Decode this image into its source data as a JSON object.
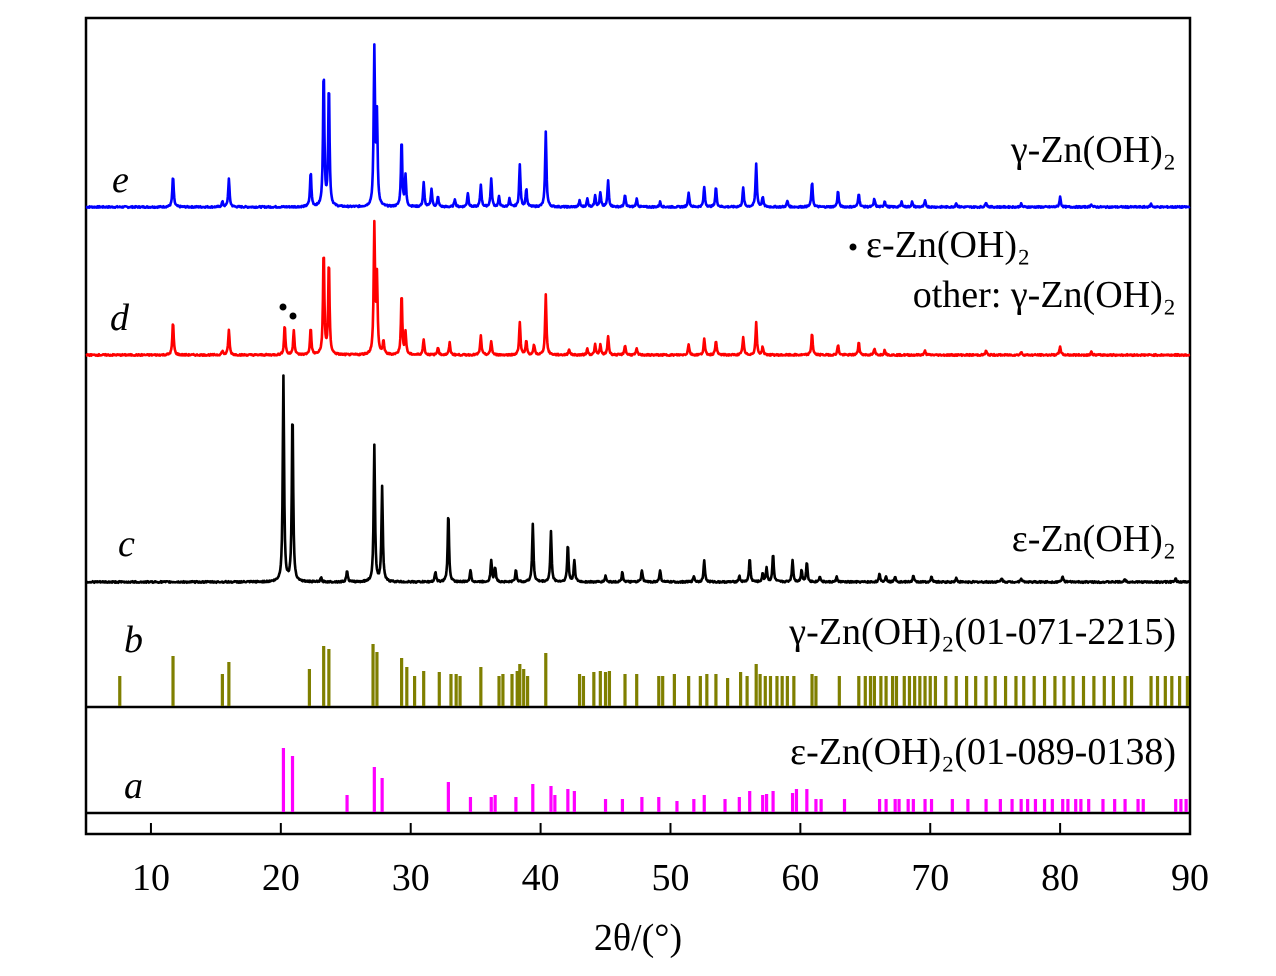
{
  "chart_data": {
    "type": "line",
    "xlabel": "2θ/(°)",
    "xlim": [
      5,
      90
    ],
    "x_ticks": [
      10,
      20,
      30,
      40,
      50,
      60,
      70,
      80,
      90
    ],
    "grid": false,
    "legend": "none",
    "panels": [
      {
        "id": "e",
        "letter": "e",
        "kind": "pattern",
        "label": "γ-Zn(OH)₂",
        "color": "#0000ff",
        "peaks": [
          [
            11.7,
            31
          ],
          [
            15.5,
            5
          ],
          [
            16.0,
            28
          ],
          [
            22.3,
            35
          ],
          [
            23.3,
            137
          ],
          [
            23.7,
            123
          ],
          [
            27.2,
            155
          ],
          [
            27.4,
            88
          ],
          [
            29.3,
            67
          ],
          [
            29.6,
            30
          ],
          [
            31.0,
            24
          ],
          [
            31.6,
            18
          ],
          [
            32.1,
            10
          ],
          [
            33.4,
            8
          ],
          [
            34.4,
            14
          ],
          [
            35.4,
            22
          ],
          [
            36.2,
            28
          ],
          [
            36.8,
            10
          ],
          [
            37.6,
            8
          ],
          [
            38.4,
            42
          ],
          [
            38.9,
            18
          ],
          [
            40.4,
            75
          ],
          [
            43.0,
            6
          ],
          [
            43.6,
            8
          ],
          [
            44.2,
            12
          ],
          [
            44.6,
            14
          ],
          [
            45.2,
            26
          ],
          [
            46.5,
            12
          ],
          [
            47.4,
            8
          ],
          [
            49.2,
            5
          ],
          [
            51.4,
            15
          ],
          [
            52.6,
            20
          ],
          [
            53.5,
            20
          ],
          [
            55.6,
            19
          ],
          [
            56.6,
            43
          ],
          [
            57.1,
            10
          ],
          [
            59.0,
            6
          ],
          [
            60.9,
            25
          ],
          [
            62.9,
            16
          ],
          [
            64.5,
            14
          ],
          [
            65.7,
            8
          ],
          [
            66.5,
            6
          ],
          [
            67.8,
            5
          ],
          [
            68.6,
            5
          ],
          [
            69.6,
            6
          ],
          [
            72.0,
            4
          ],
          [
            74.3,
            5
          ],
          [
            77.0,
            3
          ],
          [
            80.0,
            10
          ],
          [
            82.4,
            3
          ],
          [
            87.0,
            3
          ]
        ]
      },
      {
        "id": "d",
        "letter": "d",
        "kind": "pattern",
        "label": "ε-Zn(OH)₂",
        "label2": "other: γ-Zn(OH)₂",
        "color": "#ff0000",
        "peaks": [
          [
            11.7,
            33
          ],
          [
            15.5,
            4
          ],
          [
            16.0,
            25
          ],
          [
            20.3,
            30
          ],
          [
            21.0,
            25
          ],
          [
            22.3,
            27
          ],
          [
            23.3,
            105
          ],
          [
            23.7,
            93
          ],
          [
            27.2,
            127
          ],
          [
            27.4,
            75
          ],
          [
            27.9,
            14
          ],
          [
            29.3,
            61
          ],
          [
            29.6,
            22
          ],
          [
            31.0,
            16
          ],
          [
            32.1,
            8
          ],
          [
            33.0,
            12
          ],
          [
            35.4,
            19
          ],
          [
            36.2,
            14
          ],
          [
            38.4,
            33
          ],
          [
            38.9,
            14
          ],
          [
            39.5,
            10
          ],
          [
            40.4,
            60
          ],
          [
            42.2,
            6
          ],
          [
            43.6,
            6
          ],
          [
            44.2,
            10
          ],
          [
            44.6,
            10
          ],
          [
            45.2,
            19
          ],
          [
            46.5,
            10
          ],
          [
            47.4,
            6
          ],
          [
            51.4,
            11
          ],
          [
            52.6,
            16
          ],
          [
            53.5,
            15
          ],
          [
            55.6,
            18
          ],
          [
            56.6,
            32
          ],
          [
            57.1,
            8
          ],
          [
            60.9,
            22
          ],
          [
            62.9,
            10
          ],
          [
            64.5,
            13
          ],
          [
            65.7,
            6
          ],
          [
            66.5,
            5
          ],
          [
            69.6,
            4
          ],
          [
            74.3,
            4
          ],
          [
            77.0,
            3
          ],
          [
            80.0,
            9
          ],
          [
            82.4,
            3
          ]
        ]
      },
      {
        "id": "c",
        "letter": "c",
        "kind": "pattern",
        "label": "ε-Zn(OH)₂",
        "color": "#000000",
        "peaks": [
          [
            20.2,
            205
          ],
          [
            20.9,
            173
          ],
          [
            23.1,
            4
          ],
          [
            25.1,
            12
          ],
          [
            27.2,
            136
          ],
          [
            27.8,
            94
          ],
          [
            31.9,
            10
          ],
          [
            32.9,
            70
          ],
          [
            34.6,
            12
          ],
          [
            36.2,
            22
          ],
          [
            36.5,
            15
          ],
          [
            38.1,
            12
          ],
          [
            39.4,
            58
          ],
          [
            40.8,
            50
          ],
          [
            42.1,
            38
          ],
          [
            42.6,
            22
          ],
          [
            45.0,
            6
          ],
          [
            46.3,
            10
          ],
          [
            47.8,
            12
          ],
          [
            49.2,
            12
          ],
          [
            51.8,
            6
          ],
          [
            52.6,
            22
          ],
          [
            55.3,
            6
          ],
          [
            56.1,
            24
          ],
          [
            57.1,
            8
          ],
          [
            57.4,
            14
          ],
          [
            57.9,
            28
          ],
          [
            59.4,
            22
          ],
          [
            60.1,
            12
          ],
          [
            60.5,
            20
          ],
          [
            61.5,
            6
          ],
          [
            62.8,
            5
          ],
          [
            66.1,
            8
          ],
          [
            66.6,
            6
          ],
          [
            67.3,
            6
          ],
          [
            68.7,
            6
          ],
          [
            70.1,
            5
          ],
          [
            72.0,
            4
          ],
          [
            75.5,
            4
          ],
          [
            77.0,
            4
          ],
          [
            80.2,
            6
          ],
          [
            85.0,
            3
          ],
          [
            88.9,
            3
          ]
        ]
      },
      {
        "id": "b",
        "letter": "b",
        "kind": "reference",
        "label": "γ-Zn(OH)₂(01-071-2215)",
        "color": "#7f7f00",
        "peaks": [
          [
            7.6,
            30
          ],
          [
            11.7,
            50
          ],
          [
            15.5,
            32
          ],
          [
            16.0,
            44
          ],
          [
            22.2,
            37
          ],
          [
            23.3,
            60
          ],
          [
            23.7,
            57
          ],
          [
            27.1,
            62
          ],
          [
            27.4,
            54
          ],
          [
            29.3,
            48
          ],
          [
            29.7,
            39
          ],
          [
            30.3,
            30
          ],
          [
            31.0,
            35
          ],
          [
            32.2,
            34
          ],
          [
            33.1,
            32
          ],
          [
            33.5,
            32
          ],
          [
            33.8,
            30
          ],
          [
            35.4,
            39
          ],
          [
            36.8,
            30
          ],
          [
            37.1,
            32
          ],
          [
            37.8,
            32
          ],
          [
            38.2,
            35
          ],
          [
            38.4,
            42
          ],
          [
            38.7,
            37
          ],
          [
            39.0,
            30
          ],
          [
            40.4,
            53
          ],
          [
            43.0,
            32
          ],
          [
            43.3,
            30
          ],
          [
            44.1,
            34
          ],
          [
            44.6,
            35
          ],
          [
            45.0,
            34
          ],
          [
            45.3,
            35
          ],
          [
            46.5,
            32
          ],
          [
            47.4,
            32
          ],
          [
            49.1,
            30
          ],
          [
            49.4,
            30
          ],
          [
            50.3,
            32
          ],
          [
            51.4,
            30
          ],
          [
            52.3,
            30
          ],
          [
            52.8,
            32
          ],
          [
            53.5,
            32
          ],
          [
            54.4,
            28
          ],
          [
            55.4,
            34
          ],
          [
            55.9,
            30
          ],
          [
            56.6,
            42
          ],
          [
            56.9,
            32
          ],
          [
            57.3,
            30
          ],
          [
            57.7,
            30
          ],
          [
            58.2,
            30
          ],
          [
            58.6,
            30
          ],
          [
            59.0,
            30
          ],
          [
            59.5,
            30
          ],
          [
            60.9,
            32
          ],
          [
            61.2,
            30
          ],
          [
            63.0,
            30
          ],
          [
            64.5,
            30
          ],
          [
            65.0,
            30
          ],
          [
            65.4,
            30
          ],
          [
            65.7,
            30
          ],
          [
            66.2,
            30
          ],
          [
            66.6,
            30
          ],
          [
            67.1,
            30
          ],
          [
            67.4,
            30
          ],
          [
            68.0,
            30
          ],
          [
            68.4,
            30
          ],
          [
            68.8,
            30
          ],
          [
            69.2,
            30
          ],
          [
            69.6,
            30
          ],
          [
            70.0,
            30
          ],
          [
            70.4,
            30
          ],
          [
            71.2,
            30
          ],
          [
            72.0,
            30
          ],
          [
            72.8,
            30
          ],
          [
            73.5,
            30
          ],
          [
            74.3,
            30
          ],
          [
            75.0,
            30
          ],
          [
            75.8,
            30
          ],
          [
            76.6,
            30
          ],
          [
            77.2,
            30
          ],
          [
            78.0,
            30
          ],
          [
            78.8,
            30
          ],
          [
            79.6,
            30
          ],
          [
            80.3,
            30
          ],
          [
            81.0,
            30
          ],
          [
            81.8,
            30
          ],
          [
            82.6,
            30
          ],
          [
            83.4,
            30
          ],
          [
            84.1,
            30
          ],
          [
            85.0,
            30
          ],
          [
            85.5,
            30
          ],
          [
            87.0,
            30
          ],
          [
            87.5,
            30
          ],
          [
            88.1,
            30
          ],
          [
            88.6,
            30
          ],
          [
            89.2,
            30
          ],
          [
            89.8,
            30
          ]
        ]
      },
      {
        "id": "a",
        "letter": "a",
        "kind": "reference",
        "label": "ε-Zn(OH)₂(01-089-0138)",
        "color": "#ff00ff",
        "peaks": [
          [
            20.2,
            64
          ],
          [
            20.9,
            56
          ],
          [
            25.1,
            17
          ],
          [
            27.2,
            45
          ],
          [
            27.8,
            34
          ],
          [
            32.9,
            30
          ],
          [
            34.6,
            15
          ],
          [
            36.2,
            15
          ],
          [
            36.5,
            17
          ],
          [
            38.1,
            15
          ],
          [
            39.4,
            28
          ],
          [
            40.8,
            26
          ],
          [
            41.1,
            17
          ],
          [
            42.1,
            23
          ],
          [
            42.6,
            21
          ],
          [
            45.0,
            13
          ],
          [
            46.3,
            13
          ],
          [
            47.8,
            15
          ],
          [
            49.1,
            15
          ],
          [
            50.5,
            11
          ],
          [
            51.8,
            13
          ],
          [
            52.6,
            17
          ],
          [
            54.2,
            13
          ],
          [
            55.3,
            15
          ],
          [
            56.1,
            21
          ],
          [
            57.1,
            17
          ],
          [
            57.4,
            18
          ],
          [
            57.9,
            21
          ],
          [
            59.4,
            19
          ],
          [
            59.7,
            23
          ],
          [
            60.5,
            23
          ],
          [
            61.2,
            13
          ],
          [
            61.6,
            13
          ],
          [
            63.4,
            13
          ],
          [
            66.1,
            13
          ],
          [
            66.6,
            13
          ],
          [
            67.3,
            13
          ],
          [
            67.6,
            13
          ],
          [
            68.3,
            13
          ],
          [
            68.7,
            13
          ],
          [
            69.6,
            13
          ],
          [
            70.1,
            13
          ],
          [
            71.7,
            13
          ],
          [
            72.9,
            13
          ],
          [
            74.3,
            13
          ],
          [
            75.4,
            13
          ],
          [
            76.3,
            13
          ],
          [
            77.0,
            13
          ],
          [
            77.5,
            13
          ],
          [
            78.1,
            13
          ],
          [
            78.8,
            13
          ],
          [
            79.4,
            13
          ],
          [
            80.2,
            13
          ],
          [
            80.6,
            13
          ],
          [
            81.2,
            13
          ],
          [
            81.6,
            13
          ],
          [
            82.2,
            13
          ],
          [
            83.3,
            13
          ],
          [
            84.2,
            13
          ],
          [
            85.0,
            13
          ],
          [
            86.0,
            13
          ],
          [
            86.4,
            13
          ],
          [
            88.9,
            13
          ],
          [
            89.3,
            13
          ],
          [
            89.7,
            13
          ]
        ]
      }
    ]
  }
}
